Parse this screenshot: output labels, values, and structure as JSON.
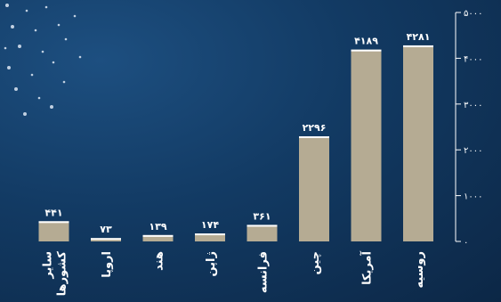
{
  "chart_data": {
    "type": "bar",
    "categories": [
      "روسیه",
      "آمریکا",
      "چین",
      "فرانسه",
      "ژاپن",
      "هند",
      "اروپا",
      "سایر کشورها"
    ],
    "values": [
      4281,
      4189,
      2296,
      361,
      174,
      139,
      73,
      441
    ],
    "value_labels": [
      "۴۲۸۱",
      "۴۱۸۹",
      "۲۲۹۶",
      "۳۶۱",
      "۱۷۴",
      "۱۳۹",
      "۷۳",
      "۴۴۱"
    ],
    "y_ticks": [
      0,
      1000,
      2000,
      3000,
      4000,
      5000
    ],
    "y_tick_labels": [
      "۰",
      "۱۰۰۰",
      "۲۰۰۰",
      "۳۰۰۰",
      "۴۰۰۰",
      "۵۰۰۰"
    ],
    "ylim": [
      0,
      5000
    ],
    "grid": false,
    "colors": {
      "bar": "#b5ab93",
      "bar_top": "#ffffff",
      "text": "#ffffff",
      "axis": "#ffffff"
    }
  }
}
